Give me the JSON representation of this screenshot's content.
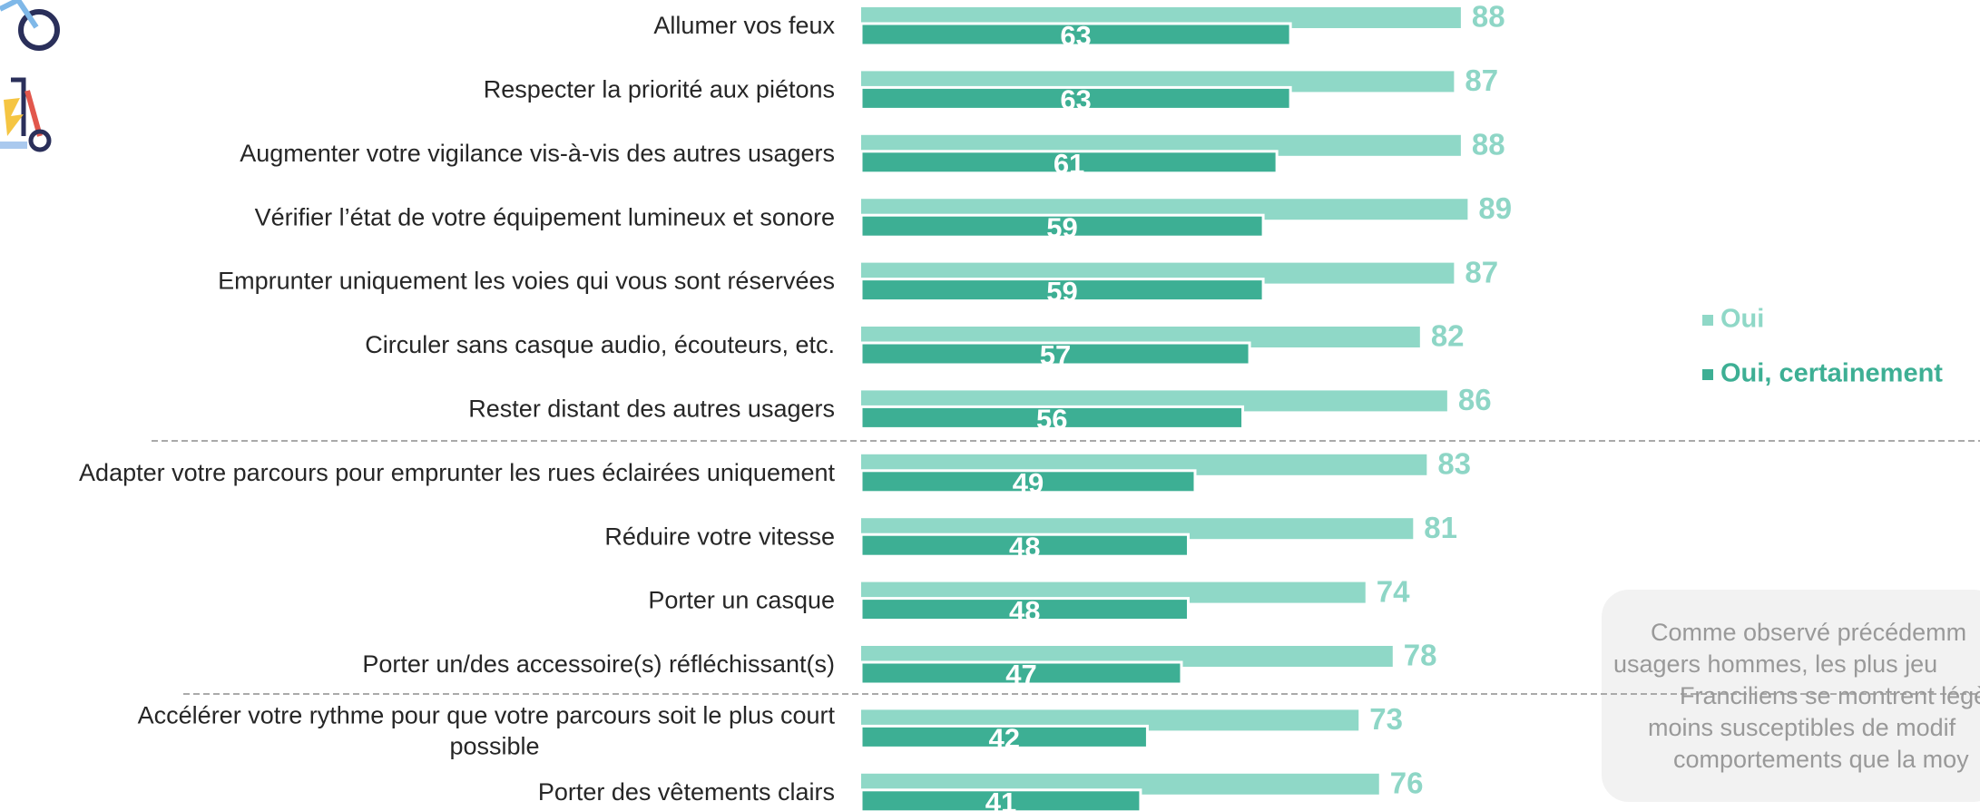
{
  "chart_data": {
    "type": "bar",
    "orientation": "horizontal",
    "categories": [
      "Allumer vos feux",
      "Respecter la priorité aux piétons",
      "Augmenter votre vigilance vis-à-vis des autres usagers",
      "Vérifier l’état de votre équipement lumineux et sonore",
      "Emprunter uniquement les voies qui vous sont réservées",
      "Circuler sans casque audio, écouteurs, etc.",
      "Rester distant des autres usagers",
      "Adapter votre parcours pour emprunter les rues éclairées uniquement",
      "Réduire votre vitesse",
      "Porter un casque",
      "Porter un/des accessoire(s) réfléchissant(s)",
      [
        "Accélérer votre rythme pour que votre parcours soit le plus court",
        "possible"
      ],
      "Porter des vêtements clairs"
    ],
    "series": [
      {
        "name": "Oui",
        "color": "#8fd8c7",
        "values": [
          88,
          87,
          88,
          89,
          87,
          82,
          86,
          83,
          81,
          74,
          78,
          73,
          76
        ]
      },
      {
        "name": "Oui, certainement",
        "color": "#3daf94",
        "values": [
          63,
          63,
          61,
          59,
          59,
          57,
          56,
          49,
          48,
          48,
          47,
          42,
          41
        ]
      }
    ],
    "legend": "right",
    "annotation": [
      "Comme observé précédemm",
      "usagers hommes, les plus jeu",
      "Franciliens se montrent légè",
      "moins susceptibles de modif",
      "comportements que la moy"
    ]
  }
}
